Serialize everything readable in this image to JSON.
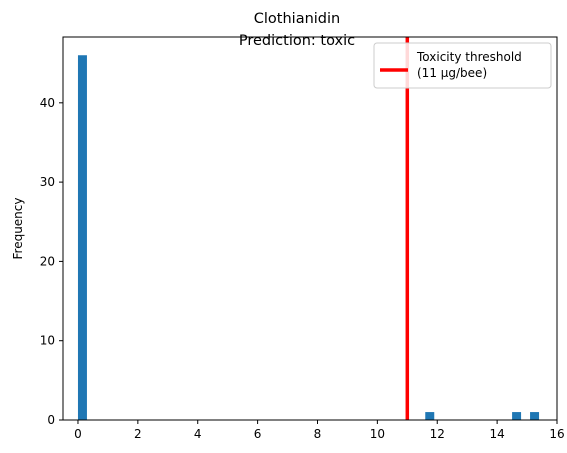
{
  "chart_data": {
    "type": "bar",
    "subtype": "histogram",
    "title": "Clothianidin",
    "subtitle": "Prediction: toxic",
    "xlabel": "",
    "ylabel": "Frequency",
    "xlim": [
      -0.5,
      16.0
    ],
    "ylim": [
      0,
      48.3
    ],
    "xticks": [
      0,
      2,
      4,
      6,
      8,
      10,
      12,
      14,
      16
    ],
    "yticks": [
      0,
      10,
      20,
      30,
      40
    ],
    "bin_width": 0.3,
    "bins": [
      {
        "x0": 0.0,
        "x1": 0.3,
        "count": 46
      },
      {
        "x0": 11.6,
        "x1": 11.9,
        "count": 1
      },
      {
        "x0": 14.5,
        "x1": 14.8,
        "count": 1
      },
      {
        "x0": 15.1,
        "x1": 15.4,
        "count": 1
      }
    ],
    "bar_color": "#1f77b4",
    "threshold": {
      "value": 11,
      "color": "#ff0000",
      "label_line1": "Toxicity threshold",
      "label_line2": "(11 µg/bee)"
    },
    "legend_position": "top-right",
    "grid": false
  }
}
